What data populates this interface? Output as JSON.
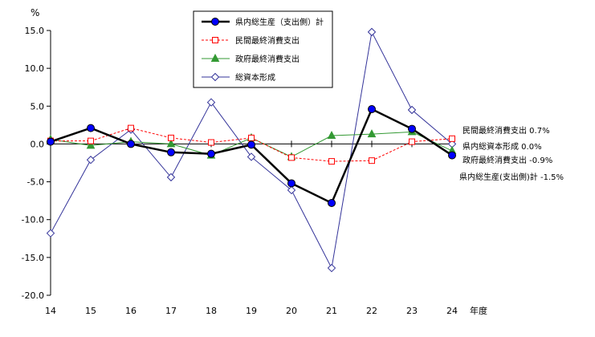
{
  "chart_data": {
    "type": "line",
    "unit_label": "%",
    "xlabel_suffix": "年度",
    "categories": [
      "14",
      "15",
      "16",
      "17",
      "18",
      "19",
      "20",
      "21",
      "22",
      "23",
      "24"
    ],
    "ylim": [
      -20,
      15
    ],
    "yticks": [
      "15.0",
      "10.0",
      "5.0",
      "0.0",
      "-5.0",
      "-10.0",
      "-15.0",
      "-20.0"
    ],
    "ytick_values": [
      15,
      10,
      5,
      0,
      -5,
      -10,
      -15,
      -20
    ],
    "grid": false,
    "legend_position": "top-center",
    "series": [
      {
        "name": "県内総生産（支出側）計",
        "color": "#000000",
        "marker": "circle-filled",
        "style": "solid-bold",
        "values": [
          0.3,
          2.1,
          0.0,
          -1.1,
          -1.3,
          -0.1,
          -5.2,
          -7.8,
          4.6,
          2.0,
          -1.5
        ]
      },
      {
        "name": "民間最終消費支出",
        "color": "#ff0000",
        "marker": "square-open",
        "style": "dashed",
        "values": [
          0.4,
          0.4,
          2.1,
          0.8,
          0.2,
          0.8,
          -1.8,
          -2.3,
          -2.2,
          0.3,
          0.7
        ]
      },
      {
        "name": "政府最終消費支出",
        "color": "#339933",
        "marker": "triangle-filled",
        "style": "solid",
        "values": [
          0.6,
          -0.2,
          0.3,
          0.0,
          -1.5,
          0.8,
          -1.7,
          1.1,
          1.3,
          1.6,
          -0.9
        ]
      },
      {
        "name": "総資本形成",
        "color": "#333399",
        "marker": "diamond-open",
        "style": "solid",
        "values": [
          -11.8,
          -2.1,
          1.9,
          -4.4,
          5.5,
          -1.7,
          -6.1,
          -16.4,
          14.8,
          4.5,
          0.0
        ]
      }
    ],
    "annotations": [
      {
        "text": "民間最終消費支出  0.7%",
        "series": 1
      },
      {
        "text": "県内総資本形成  0.0%",
        "series": 3
      },
      {
        "text": "政府最終消費支出  -0.9%",
        "series": 2
      },
      {
        "text": "県内総生産(支出側)計  -1.5%",
        "series": 0
      }
    ]
  }
}
